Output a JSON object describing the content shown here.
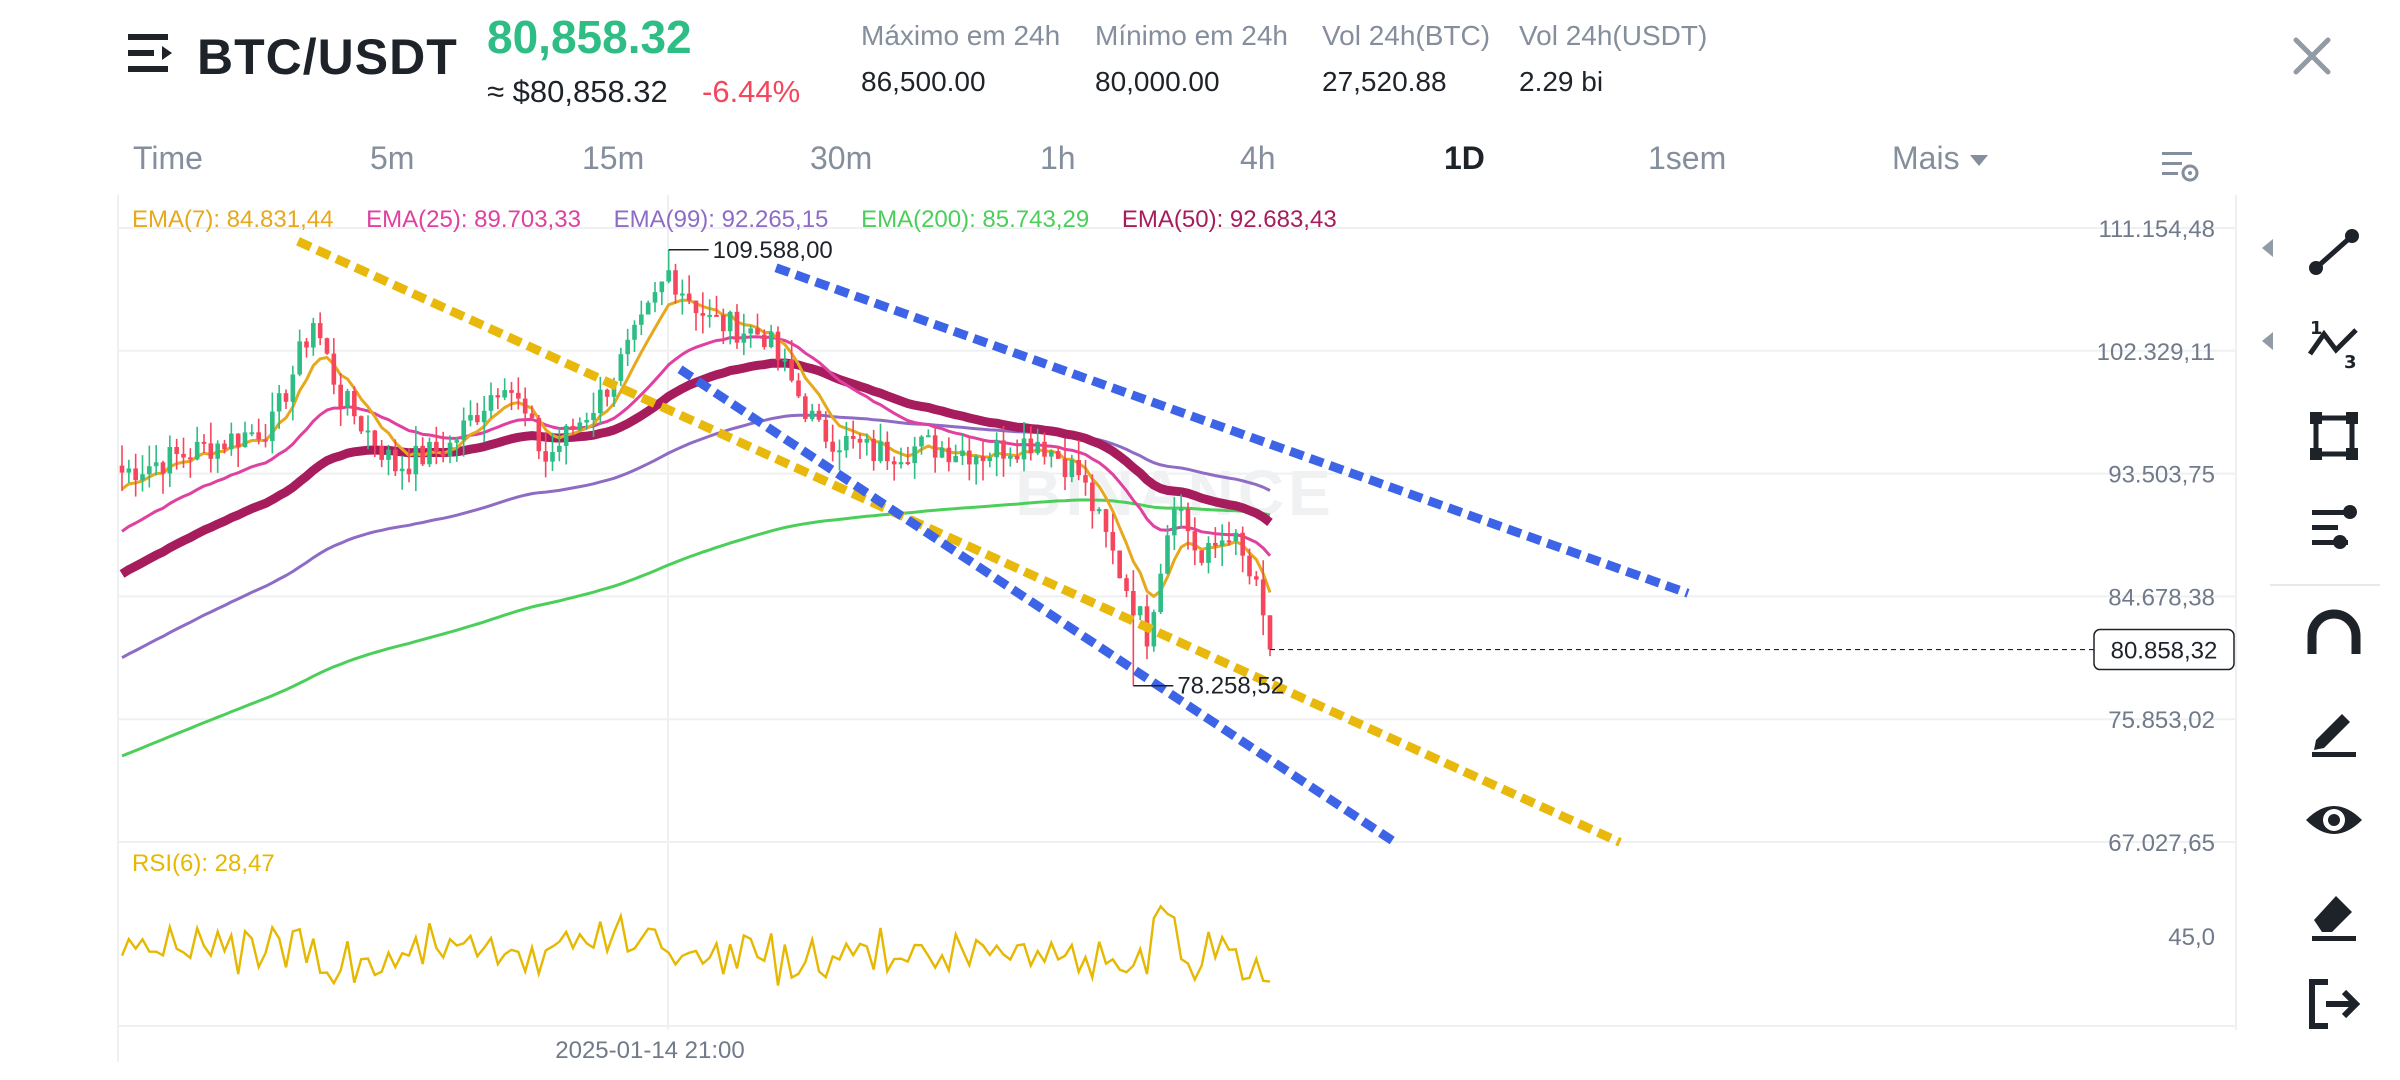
{
  "header": {
    "pair": "BTC/USDT",
    "price": "80,858.32",
    "price_usd": "≈ $80,858.32",
    "change": "-6.44%",
    "stats": [
      {
        "label": "Máximo em 24h",
        "value": "86,500.00"
      },
      {
        "label": "Mínimo em 24h",
        "value": "80,000.00"
      },
      {
        "label": "Vol 24h(BTC)",
        "value": "27,520.88"
      },
      {
        "label": "Vol 24h(USDT)",
        "value": "2.29 bi"
      }
    ],
    "icons": {
      "menu": "menu-lines-icon",
      "close": "close-icon"
    }
  },
  "tabs": [
    {
      "label": "Time",
      "active": false
    },
    {
      "label": "5m",
      "active": false
    },
    {
      "label": "15m",
      "active": false
    },
    {
      "label": "30m",
      "active": false
    },
    {
      "label": "1h",
      "active": false
    },
    {
      "label": "4h",
      "active": false
    },
    {
      "label": "1D",
      "active": true
    },
    {
      "label": "1sem",
      "active": false
    },
    {
      "label": "Mais",
      "active": false
    }
  ],
  "legend": {
    "ema7": "EMA(7): 84.831,44",
    "ema25": "EMA(25): 89.703,33",
    "ema99": "EMA(99): 92.265,15",
    "ema200": "EMA(200): 85.743,29",
    "ema50": "EMA(50): 92.683,43"
  },
  "colors": {
    "up": "#2ebd85",
    "down": "#f6465d",
    "ema7": "#e6a81c",
    "ema25": "#e040a0",
    "ema99": "#8e6cc6",
    "ema200": "#4ccf5a",
    "ema50": "#a61c5c",
    "trend_yellow": "#e8b90c",
    "trend_blue": "#3d64e6",
    "rsi": "#e6b800"
  },
  "chart_data": {
    "type": "candlestick",
    "price_axis_ticks": [
      "111.154,48",
      "102.329,11",
      "93.503,75",
      "84.678,38",
      "75.853,02",
      "67.027,65"
    ],
    "price_axis_values": [
      111154.48,
      102329.11,
      93503.75,
      84678.38,
      75853.02,
      67027.65
    ],
    "ylim": [
      67027.65,
      111154.48
    ],
    "current_price": "80.858,32",
    "high_label": "109.588,00",
    "low_label": "78.258,52",
    "time_label": "2025-01-14 21:00",
    "rsi_label": "RSI(6): 28,47",
    "rsi_tick": "45,0",
    "watermark": "BINANCE"
  },
  "toolbar": {
    "tools": [
      "trend-line-icon",
      "multi-line-icon",
      "rectangle-icon",
      "fib-lines-icon",
      "magnet-icon",
      "pen-icon",
      "eye-icon",
      "eraser-icon",
      "exit-icon"
    ]
  }
}
